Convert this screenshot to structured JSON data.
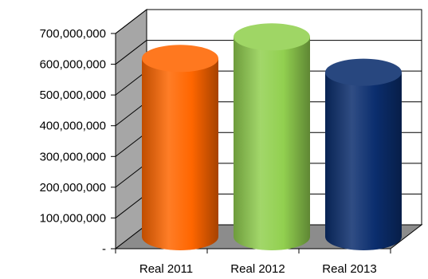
{
  "chart_data": {
    "type": "bar",
    "style": "3d-cylinder",
    "categories": [
      "Real 2011",
      "Real 2012",
      "Real 2013"
    ],
    "values": [
      580000000,
      650000000,
      535000000
    ],
    "colors": [
      "#FF6600",
      "#92D050",
      "#0B2E6E"
    ],
    "ylim": [
      0,
      700000000
    ],
    "yticks": [
      0,
      100000000,
      200000000,
      300000000,
      400000000,
      500000000,
      600000000,
      700000000
    ],
    "ytick_labels": [
      "-",
      "100,000,000",
      "200,000,000",
      "300,000,000",
      "400,000,000",
      "500,000,000",
      "600,000,000",
      "700,000,000"
    ],
    "grid": true,
    "legend": "none",
    "title": "",
    "xlabel": "",
    "ylabel": ""
  }
}
